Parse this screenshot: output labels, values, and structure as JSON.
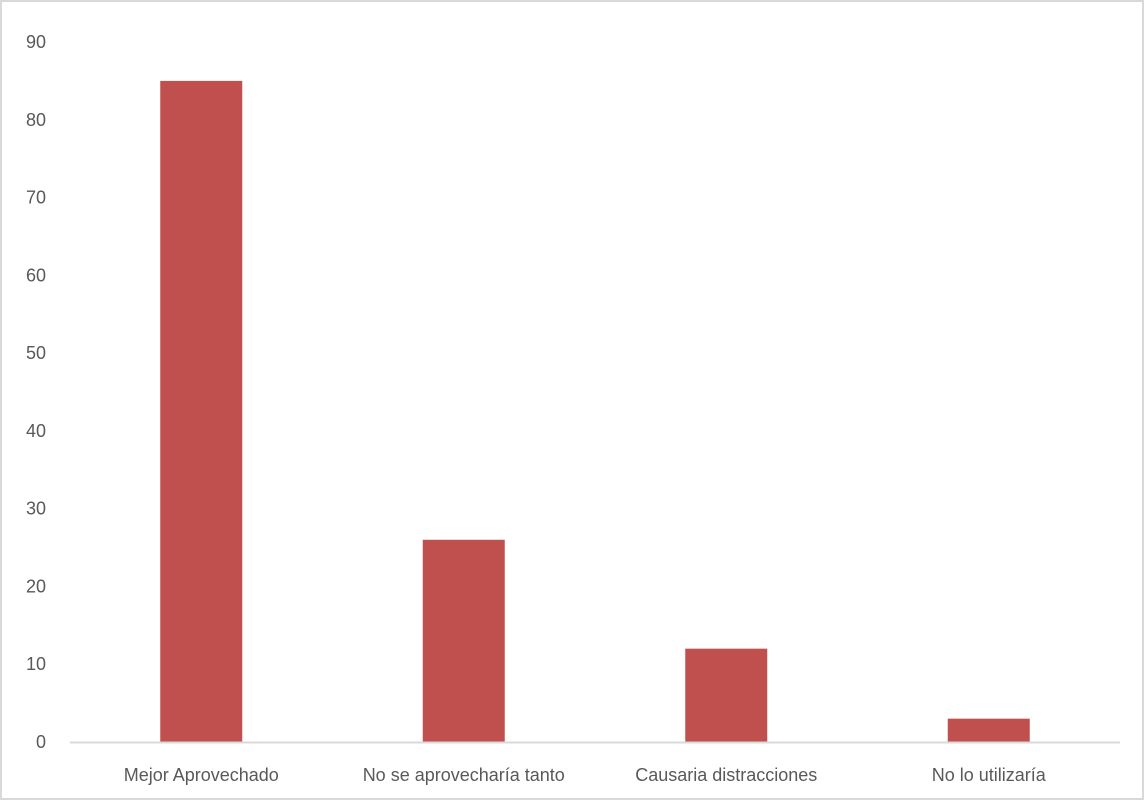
{
  "chart_data": {
    "type": "bar",
    "title": "",
    "xlabel": "",
    "ylabel": "",
    "categories": [
      "Mejor Aprovechado",
      "No se aprovecharía tanto",
      "Causaria distracciones",
      "No lo utilizaría"
    ],
    "values": [
      85,
      26,
      12,
      3
    ],
    "ylim": [
      0,
      90
    ],
    "yticks": [
      "0",
      "10",
      "20",
      "30",
      "40",
      "50",
      "60",
      "70",
      "80",
      "90"
    ],
    "grid": false,
    "legend": "none",
    "bar_color": "#c0504d",
    "axis_color": "#d9d9d9",
    "text_color": "#595959"
  }
}
